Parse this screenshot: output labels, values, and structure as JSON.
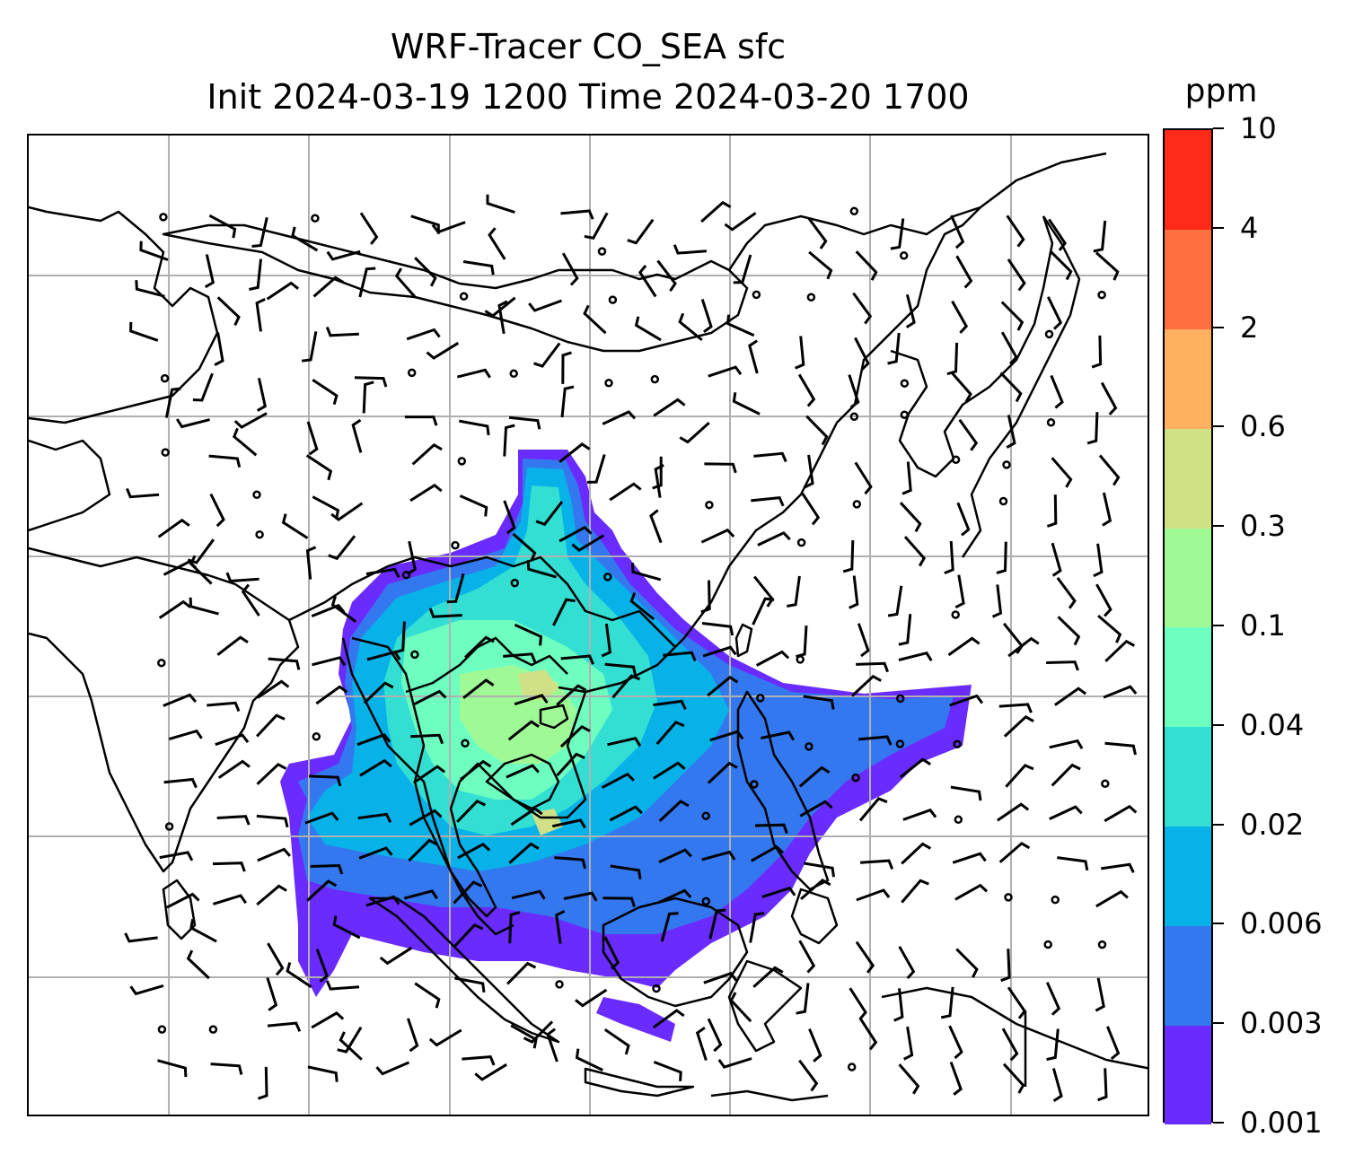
{
  "title_line1": "WRF-Tracer CO_SEA sfc",
  "title_line2": "Init 2024-03-19 1200 Time 2024-03-20 1700",
  "colorbar": {
    "units": "ppm",
    "levels": [
      "0.001",
      "0.003",
      "0.006",
      "0.02",
      "0.04",
      "0.1",
      "0.3",
      "0.6",
      "2",
      "4",
      "10"
    ],
    "colors": [
      "#6a2bff",
      "#3478f0",
      "#07b2e8",
      "#32dfd2",
      "#6effc0",
      "#9ffa96",
      "#cfe087",
      "#ffb060",
      "#ff7040",
      "#ff2a1a"
    ]
  },
  "map": {
    "gridlines": true,
    "coastline_color": "#000000",
    "grid_color": "#b0b0b0",
    "overlay": "wind barbs",
    "field": "CO_SEA tracer concentration at surface"
  }
}
